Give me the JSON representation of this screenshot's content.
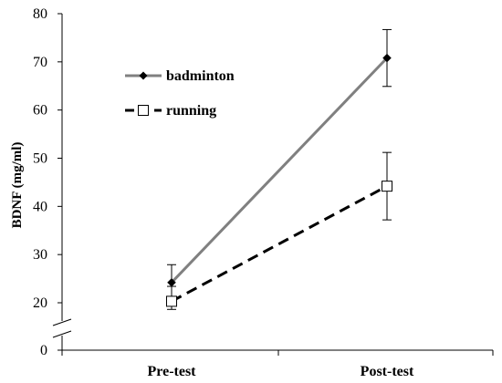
{
  "chart_data": {
    "type": "line",
    "categories": [
      "Pre-test",
      "Post-test"
    ],
    "ylabel": "BDNF (mg/ml)",
    "xlabel": "",
    "ylim": [
      0,
      80
    ],
    "yticks": [
      0,
      20,
      30,
      40,
      50,
      60,
      70,
      80
    ],
    "axis_break": [
      0,
      20
    ],
    "legend_position": "top-left",
    "grid": false,
    "series": [
      {
        "name": "badminton",
        "values": [
          24.2,
          70.8
        ],
        "error": [
          3.7,
          5.9
        ],
        "marker": "diamond",
        "line_style": "solid",
        "color": "#808080"
      },
      {
        "name": "running",
        "values": [
          20.3,
          44.2
        ],
        "error": [
          3.1,
          7.0
        ],
        "marker": "square-open",
        "line_style": "dashed",
        "color": "#000000"
      }
    ]
  }
}
